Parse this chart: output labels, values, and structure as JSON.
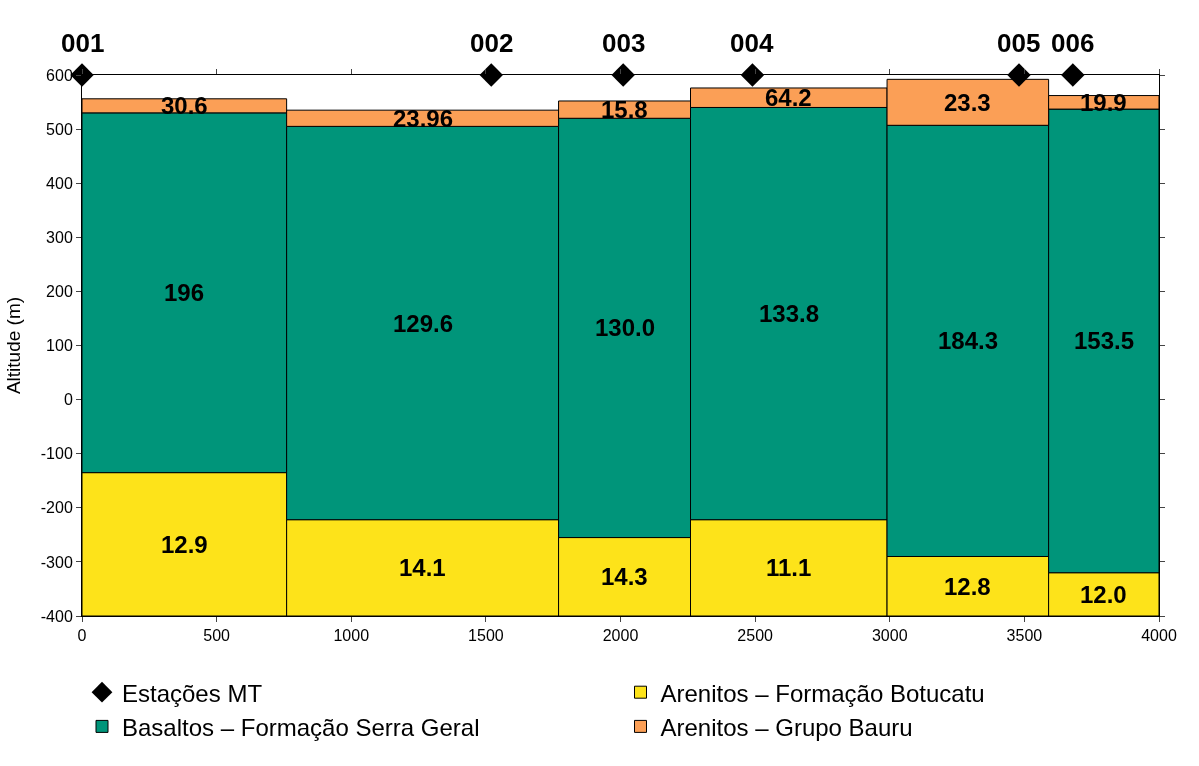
{
  "chart_data": {
    "type": "bar",
    "ylabel": "Altitude (m)",
    "x": [
      380,
      1265,
      2015,
      2625,
      3290,
      3795
    ],
    "series": [
      {
        "type": "scatter",
        "name": "Estações MT",
        "color": "#000000",
        "marker": "diamond",
        "x": [
          0,
          1520,
          2010,
          2490,
          3480,
          3680
        ],
        "values": [
          600,
          600,
          600,
          600,
          600,
          600
        ]
      },
      {
        "name": "Arenitos – Formação Botucatu",
        "color": "#fde31a",
        "base": [
          -400,
          -400,
          -400,
          -400,
          -400,
          -400
        ],
        "values": [
          265,
          178,
          145,
          178,
          110,
          80
        ]
      },
      {
        "name": "Basaltos – Formação Serra Geral",
        "color": "#00957a",
        "base": [
          -135,
          -222,
          -255,
          -222,
          -290,
          -320
        ],
        "values": [
          665,
          727,
          775,
          762,
          797,
          857
        ]
      },
      {
        "name": "Arenitos – Grupo Bauru",
        "color": "#fb9f56",
        "base": [
          530,
          505,
          520,
          540,
          507,
          537
        ],
        "values": [
          26,
          30,
          32,
          36,
          85,
          25
        ]
      }
    ],
    "annotations": [
      {
        "text": "001",
        "x": 0,
        "y": 600
      },
      {
        "text": "002",
        "x": 1520,
        "y": 600
      },
      {
        "text": "003",
        "x": 2010,
        "y": 600
      },
      {
        "text": "004",
        "x": 2490,
        "y": 600
      },
      {
        "text": "005",
        "x": 3480,
        "y": 600
      },
      {
        "text": "006",
        "x": 3680,
        "y": 600
      },
      "12.9",
      "14.1",
      "14.3",
      "11.1",
      "12.8",
      "12.0",
      "196",
      "129.6",
      "130.0",
      "133.8",
      "184.3",
      "153.5",
      "30.6",
      "23.96",
      "15.8",
      "64.2",
      "23.3",
      "19.9"
    ],
    "xlim": [
      0,
      4000
    ],
    "xticks": [
      0,
      500,
      1000,
      1500,
      2000,
      2500,
      3000,
      3500,
      4000
    ],
    "ylim": [
      -400,
      600
    ],
    "yticks": [
      -400,
      -300,
      -200,
      -100,
      0,
      100,
      200,
      300,
      400,
      500,
      600
    ],
    "legend": "bottom"
  }
}
